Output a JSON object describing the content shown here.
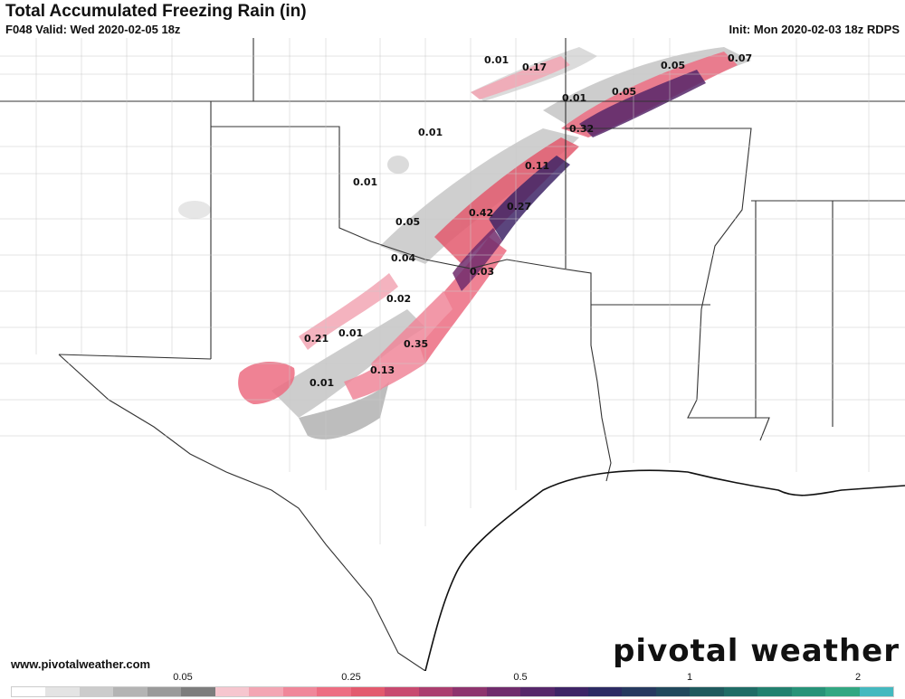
{
  "header": {
    "title": "Total Accumulated Freezing Rain (in)",
    "valid": "F048 Valid: Wed 2020-02-05 18z",
    "init": "Init: Mon 2020-02-03 18z RDPS"
  },
  "footer": {
    "website": "www.pivotalweather.com",
    "brand": "pivotal weather"
  },
  "map_labels": [
    {
      "text": "0.01",
      "id": "l1"
    },
    {
      "text": "0.17",
      "id": "l2"
    },
    {
      "text": "0.05",
      "id": "l3"
    },
    {
      "text": "0.07",
      "id": "l4"
    },
    {
      "text": "0.01",
      "id": "l5"
    },
    {
      "text": "0.05",
      "id": "l6"
    },
    {
      "text": "0.01",
      "id": "l7"
    },
    {
      "text": "0.32",
      "id": "l8"
    },
    {
      "text": "0.11",
      "id": "l9"
    },
    {
      "text": "0.01",
      "id": "l10"
    },
    {
      "text": "0.42",
      "id": "l11"
    },
    {
      "text": "0.27",
      "id": "l12"
    },
    {
      "text": "0.05",
      "id": "l13"
    },
    {
      "text": "0.04",
      "id": "l14"
    },
    {
      "text": "0.03",
      "id": "l15"
    },
    {
      "text": "0.02",
      "id": "l16"
    },
    {
      "text": "0.21",
      "id": "l17"
    },
    {
      "text": "0.01",
      "id": "l18"
    },
    {
      "text": "0.35",
      "id": "l19"
    },
    {
      "text": "0.13",
      "id": "l20"
    },
    {
      "text": "0.01",
      "id": "l21"
    }
  ],
  "legend": {
    "ticks": [
      "0.05",
      "0.25",
      "0.5",
      "1",
      "2"
    ],
    "colors": [
      "#ffffff",
      "#e4e4e4",
      "#cccccc",
      "#b4b4b4",
      "#9a9a9a",
      "#7d7d7d",
      "#f6c6cf",
      "#f3a6b4",
      "#f0879a",
      "#ed6d82",
      "#e35a6e",
      "#c84a70",
      "#ab3e6f",
      "#8e346e",
      "#702b6c",
      "#56276a",
      "#3e2466",
      "#2c2a63",
      "#26395f",
      "#21485c",
      "#1f5a5e",
      "#1f6c66",
      "#22806f",
      "#279378",
      "#32a782",
      "#44b9bf"
    ]
  }
}
